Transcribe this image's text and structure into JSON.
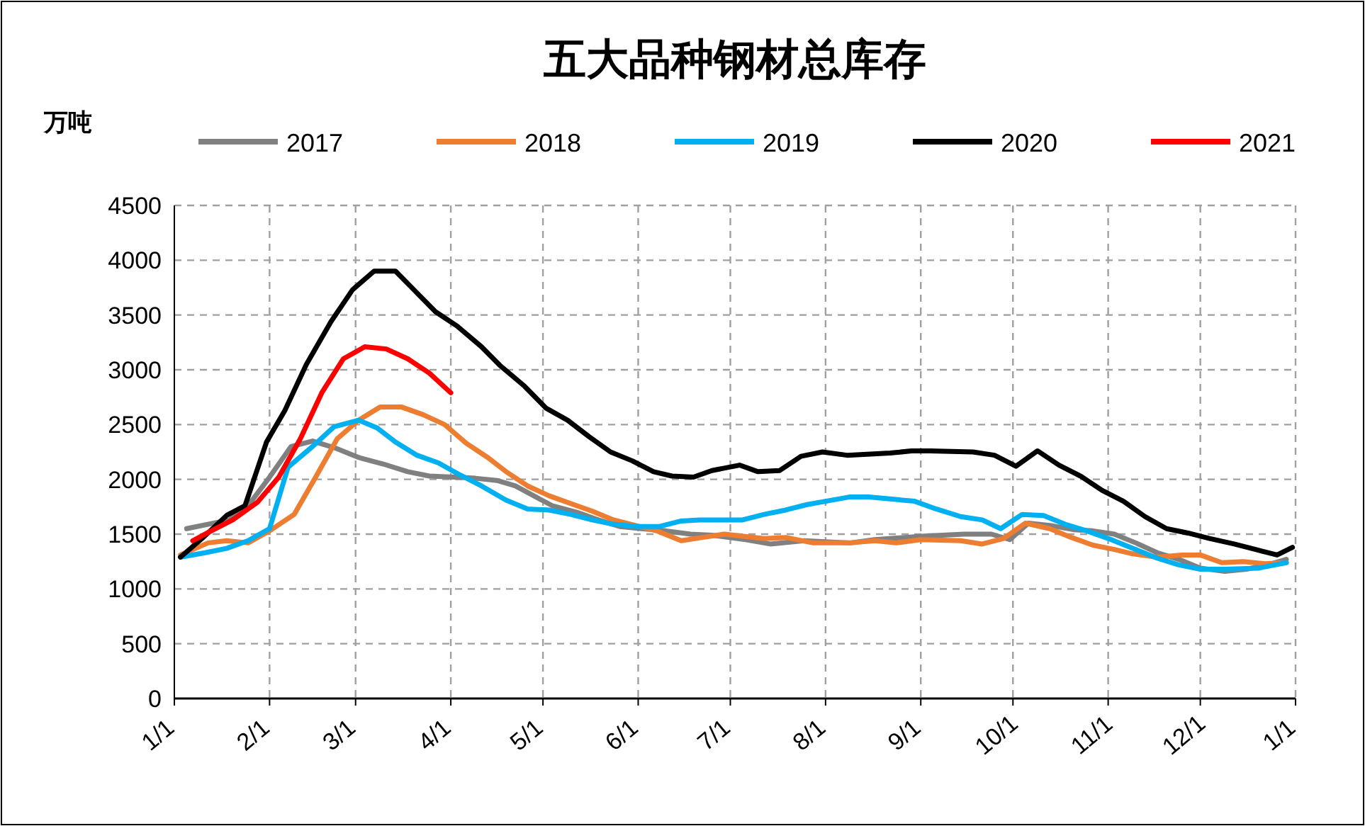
{
  "chart_data": {
    "type": "line",
    "title": "五大品种钢材总库存",
    "ylabel": "万吨",
    "xlim": [
      "2021-01-01",
      "2022-01-01"
    ],
    "xticks": [
      {
        "value": "2021-01-01",
        "label": "1/1"
      },
      {
        "value": "2021-02-01",
        "label": "2/1"
      },
      {
        "value": "2021-03-01",
        "label": "3/1"
      },
      {
        "value": "2021-04-01",
        "label": "4/1"
      },
      {
        "value": "2021-05-01",
        "label": "5/1"
      },
      {
        "value": "2021-06-01",
        "label": "6/1"
      },
      {
        "value": "2021-07-01",
        "label": "7/1"
      },
      {
        "value": "2021-08-01",
        "label": "8/1"
      },
      {
        "value": "2021-09-01",
        "label": "9/1"
      },
      {
        "value": "2021-10-01",
        "label": "10/1"
      },
      {
        "value": "2021-11-01",
        "label": "11/1"
      },
      {
        "value": "2021-12-01",
        "label": "12/1"
      },
      {
        "value": "2022-01-01",
        "label": "1/1"
      }
    ],
    "ylim": [
      0,
      4500
    ],
    "yticks": [
      0,
      500,
      1000,
      1500,
      2000,
      2500,
      3000,
      3500,
      4000,
      4500
    ],
    "grid": true,
    "legend": "top",
    "line_style": "solid",
    "marker": "none",
    "series": [
      {
        "name": "2017",
        "color": "#808080",
        "x": [
          "2021-01-05",
          "2021-01-19",
          "2021-01-25",
          "2021-02-01",
          "2021-02-08",
          "2021-02-15",
          "2021-02-22",
          "2021-03-02",
          "2021-03-10",
          "2021-03-18",
          "2021-03-25",
          "2021-04-02",
          "2021-04-09",
          "2021-04-16",
          "2021-04-22",
          "2021-04-28",
          "2021-05-04",
          "2021-05-12",
          "2021-05-19",
          "2021-05-26",
          "2021-06-02",
          "2021-06-10",
          "2021-06-18",
          "2021-06-25",
          "2021-07-06",
          "2021-07-14",
          "2021-07-25",
          "2021-08-09",
          "2021-08-17",
          "2021-09-01",
          "2021-09-15",
          "2021-09-24",
          "2021-09-30",
          "2021-10-06",
          "2021-10-13",
          "2021-10-21",
          "2021-10-27",
          "2021-11-03",
          "2021-11-10",
          "2021-11-17",
          "2021-11-24",
          "2021-12-01",
          "2021-12-09",
          "2021-12-16",
          "2021-12-23",
          "2021-12-29"
        ],
        "values": [
          1550,
          1630,
          1760,
          2020,
          2300,
          2350,
          2290,
          2200,
          2140,
          2070,
          2030,
          2020,
          2010,
          1990,
          1940,
          1850,
          1760,
          1700,
          1630,
          1570,
          1550,
          1530,
          1500,
          1490,
          1450,
          1410,
          1440,
          1420,
          1450,
          1480,
          1500,
          1500,
          1450,
          1600,
          1580,
          1540,
          1530,
          1500,
          1420,
          1330,
          1270,
          1190,
          1160,
          1180,
          1220,
          1270
        ]
      },
      {
        "name": "2018",
        "color": "#ed7d31",
        "x": [
          "2021-01-03",
          "2021-01-12",
          "2021-01-18",
          "2021-01-25",
          "2021-02-01",
          "2021-02-09",
          "2021-02-16",
          "2021-02-23",
          "2021-03-02",
          "2021-03-09",
          "2021-03-16",
          "2021-03-23",
          "2021-03-30",
          "2021-04-06",
          "2021-04-13",
          "2021-04-19",
          "2021-04-26",
          "2021-05-03",
          "2021-05-10",
          "2021-05-17",
          "2021-05-24",
          "2021-05-31",
          "2021-06-07",
          "2021-06-15",
          "2021-06-22",
          "2021-06-29",
          "2021-07-12",
          "2021-07-19",
          "2021-07-28",
          "2021-08-09",
          "2021-08-17",
          "2021-08-24",
          "2021-09-01",
          "2021-09-14",
          "2021-09-21",
          "2021-09-28",
          "2021-10-05",
          "2021-10-13",
          "2021-10-20",
          "2021-10-27",
          "2021-11-03",
          "2021-11-09",
          "2021-11-17",
          "2021-11-25",
          "2021-12-01",
          "2021-12-08",
          "2021-12-15",
          "2021-12-22",
          "2021-12-29"
        ],
        "values": [
          1310,
          1420,
          1440,
          1420,
          1530,
          1680,
          2020,
          2370,
          2540,
          2660,
          2660,
          2590,
          2500,
          2330,
          2200,
          2070,
          1940,
          1850,
          1780,
          1710,
          1630,
          1580,
          1530,
          1440,
          1470,
          1500,
          1460,
          1470,
          1420,
          1420,
          1440,
          1420,
          1450,
          1440,
          1410,
          1460,
          1600,
          1550,
          1470,
          1400,
          1360,
          1320,
          1290,
          1310,
          1310,
          1240,
          1250,
          1230,
          1240
        ]
      },
      {
        "name": "2019",
        "color": "#00b0f0",
        "x": [
          "2021-01-03",
          "2021-01-11",
          "2021-01-18",
          "2021-01-25",
          "2021-02-01",
          "2021-02-07",
          "2021-02-15",
          "2021-02-22",
          "2021-03-02",
          "2021-03-08",
          "2021-03-14",
          "2021-03-21",
          "2021-03-28",
          "2021-04-04",
          "2021-04-11",
          "2021-04-19",
          "2021-04-26",
          "2021-05-03",
          "2021-05-10",
          "2021-05-17",
          "2021-05-24",
          "2021-06-01",
          "2021-06-08",
          "2021-06-15",
          "2021-06-21",
          "2021-07-05",
          "2021-07-12",
          "2021-07-19",
          "2021-07-26",
          "2021-08-01",
          "2021-08-09",
          "2021-08-15",
          "2021-08-30",
          "2021-09-06",
          "2021-09-14",
          "2021-09-21",
          "2021-09-27",
          "2021-10-04",
          "2021-10-11",
          "2021-10-18",
          "2021-10-25",
          "2021-11-02",
          "2021-11-09",
          "2021-11-17",
          "2021-11-24",
          "2021-12-01",
          "2021-12-09",
          "2021-12-20",
          "2021-12-29"
        ],
        "values": [
          1290,
          1330,
          1370,
          1440,
          1550,
          2110,
          2300,
          2480,
          2540,
          2470,
          2340,
          2220,
          2150,
          2040,
          1940,
          1810,
          1730,
          1720,
          1680,
          1630,
          1590,
          1570,
          1570,
          1620,
          1630,
          1630,
          1680,
          1720,
          1770,
          1800,
          1840,
          1840,
          1800,
          1730,
          1660,
          1630,
          1550,
          1680,
          1670,
          1590,
          1530,
          1450,
          1370,
          1280,
          1220,
          1180,
          1180,
          1190,
          1240
        ]
      },
      {
        "name": "2020",
        "color": "#000000",
        "x": [
          "2021-01-03",
          "2021-01-10",
          "2021-01-18",
          "2021-01-24",
          "2021-01-31",
          "2021-02-06",
          "2021-02-13",
          "2021-02-21",
          "2021-02-28",
          "2021-03-07",
          "2021-03-14",
          "2021-03-20",
          "2021-03-27",
          "2021-04-03",
          "2021-04-11",
          "2021-04-17",
          "2021-04-25",
          "2021-05-02",
          "2021-05-09",
          "2021-05-16",
          "2021-05-23",
          "2021-05-30",
          "2021-06-06",
          "2021-06-12",
          "2021-06-19",
          "2021-06-25",
          "2021-07-04",
          "2021-07-10",
          "2021-07-17",
          "2021-07-24",
          "2021-07-31",
          "2021-08-08",
          "2021-08-22",
          "2021-08-29",
          "2021-09-04",
          "2021-09-18",
          "2021-09-25",
          "2021-10-02",
          "2021-10-09",
          "2021-10-16",
          "2021-10-23",
          "2021-10-30",
          "2021-11-06",
          "2021-11-13",
          "2021-11-20",
          "2021-11-27",
          "2021-12-04",
          "2021-12-12",
          "2021-12-19",
          "2021-12-26",
          "2021-12-31"
        ],
        "values": [
          1290,
          1460,
          1670,
          1760,
          2340,
          2630,
          3050,
          3440,
          3730,
          3900,
          3900,
          3730,
          3530,
          3400,
          3210,
          3040,
          2850,
          2650,
          2540,
          2390,
          2250,
          2170,
          2070,
          2030,
          2020,
          2080,
          2130,
          2070,
          2080,
          2210,
          2250,
          2220,
          2240,
          2260,
          2260,
          2250,
          2220,
          2120,
          2260,
          2130,
          2030,
          1900,
          1800,
          1660,
          1550,
          1510,
          1460,
          1410,
          1360,
          1310,
          1380
        ]
      },
      {
        "name": "2021",
        "color": "#ff0000",
        "x": [
          "2021-01-07",
          "2021-01-13",
          "2021-01-20",
          "2021-01-28",
          "2021-02-04",
          "2021-02-11",
          "2021-02-18",
          "2021-02-25",
          "2021-03-04",
          "2021-03-11",
          "2021-03-18",
          "2021-03-25",
          "2021-04-01"
        ],
        "values": [
          1440,
          1530,
          1630,
          1790,
          2020,
          2370,
          2790,
          3100,
          3210,
          3190,
          3100,
          2970,
          2790
        ]
      }
    ]
  }
}
